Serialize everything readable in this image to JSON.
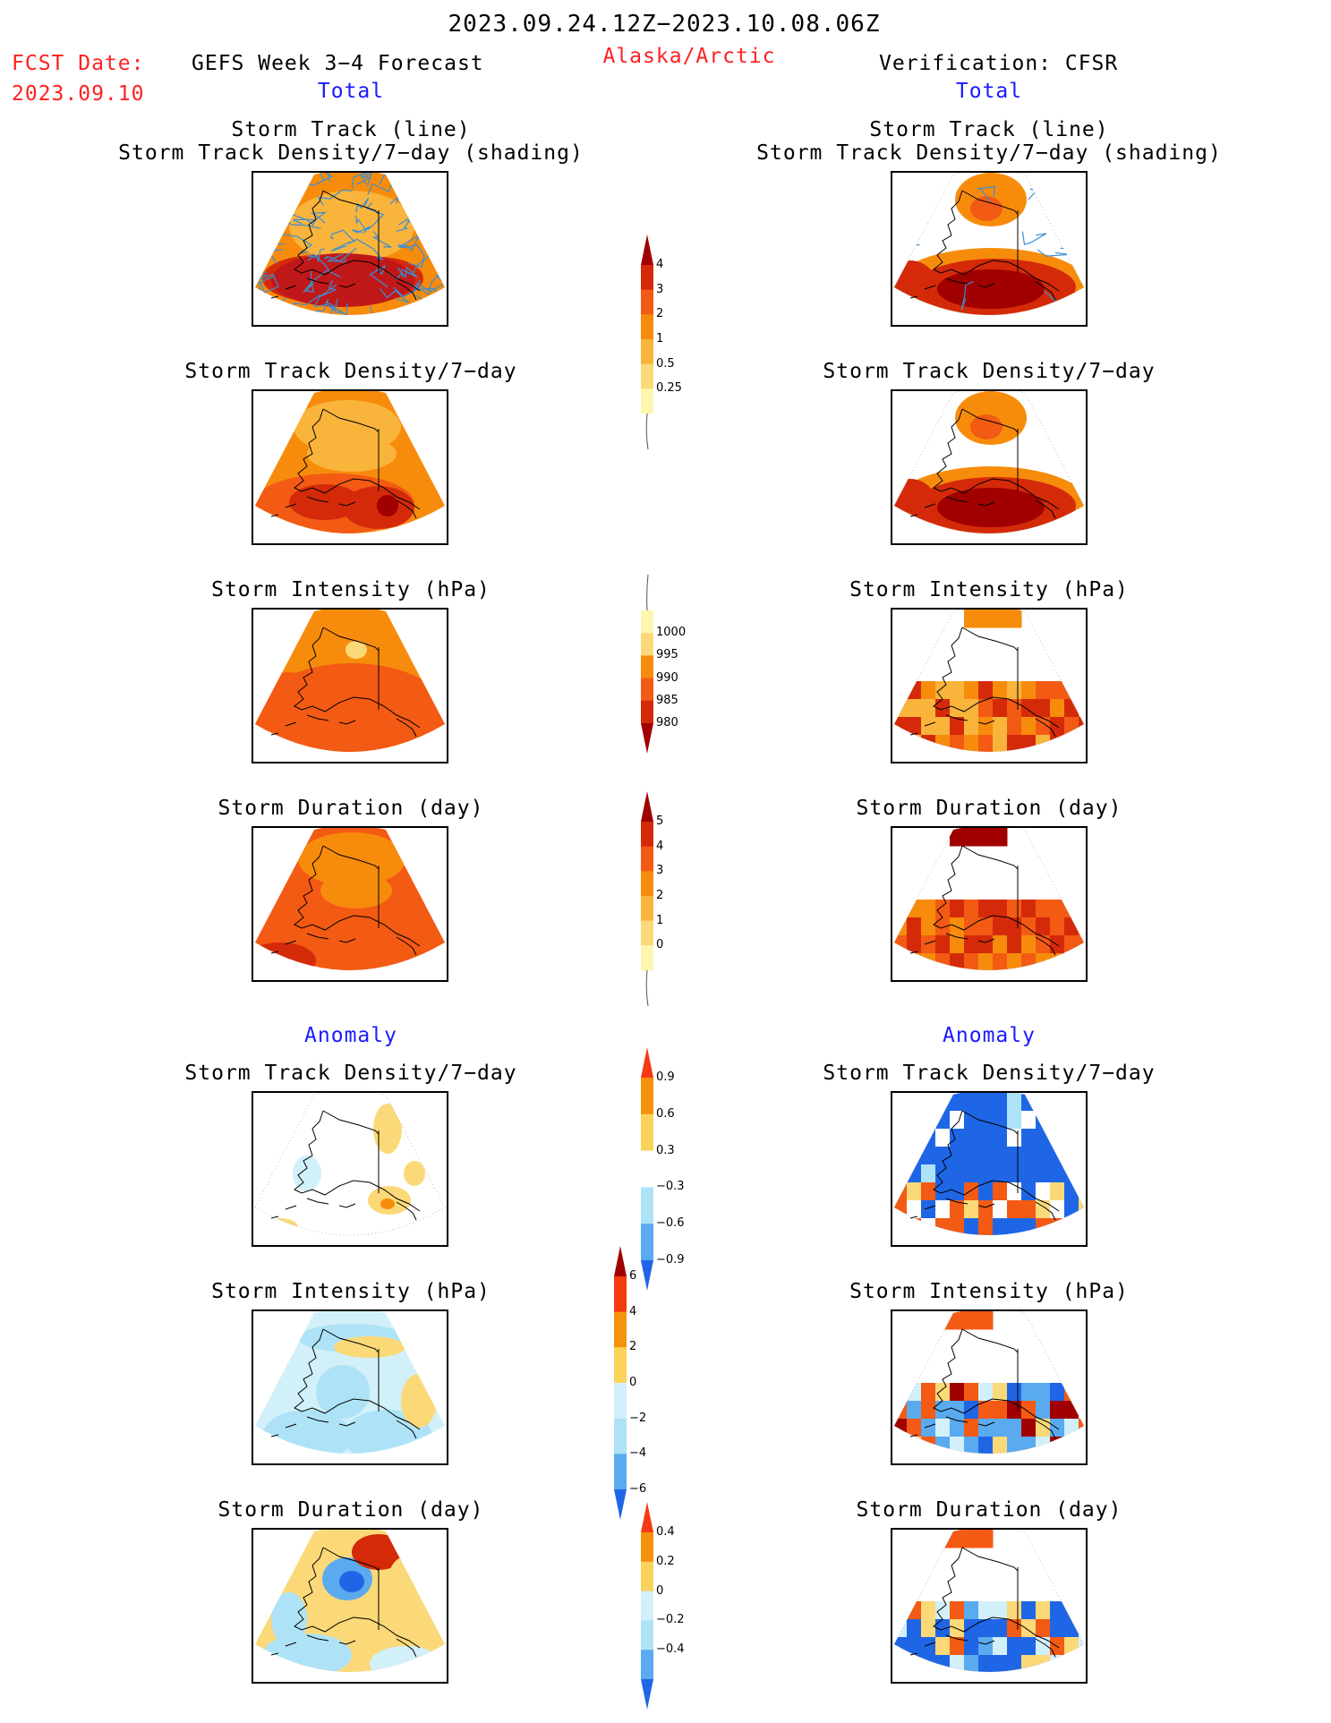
{
  "header": {
    "date_range": "2023.09.24.12Z−2023.10.08.06Z",
    "fcst_label": "FCST Date:",
    "fcst_date": "2023.09.10",
    "left_title": "GEFS Week 3−4 Forecast",
    "region": "Alaska/Arctic",
    "right_title": "Verification: CFSR",
    "left_subtitle": "Total",
    "right_subtitle": "Total"
  },
  "sections": {
    "anomaly_left": "Anomaly",
    "anomaly_right": "Anomaly"
  },
  "panels": [
    {
      "id": "fc-track",
      "title1": "Storm Track (line)",
      "title2": "Storm Track Density/7−day (shading)"
    },
    {
      "id": "fc-density",
      "title1": "Storm Track Density/7−day"
    },
    {
      "id": "fc-intensity",
      "title1": "Storm Intensity (hPa)"
    },
    {
      "id": "fc-duration",
      "title1": "Storm Duration (day)"
    },
    {
      "id": "fc-anom-density",
      "title1": "Storm Track Density/7−day"
    },
    {
      "id": "fc-anom-intensity",
      "title1": "Storm Intensity (hPa)"
    },
    {
      "id": "fc-anom-duration",
      "title1": "Storm Duration (day)"
    },
    {
      "id": "vf-track",
      "title1": "Storm Track (line)",
      "title2": "Storm Track Density/7−day (shading)"
    },
    {
      "id": "vf-density",
      "title1": "Storm Track Density/7−day"
    },
    {
      "id": "vf-intensity",
      "title1": "Storm Intensity (hPa)"
    },
    {
      "id": "vf-duration",
      "title1": "Storm Duration (day)"
    },
    {
      "id": "vf-anom-density",
      "title1": "Storm Track Density/7−day"
    },
    {
      "id": "vf-anom-intensity",
      "title1": "Storm Intensity (hPa)"
    },
    {
      "id": "vf-anom-duration",
      "title1": "Storm Duration (day)"
    }
  ],
  "colorbars": [
    {
      "id": "cb-density",
      "labels": [
        "4",
        "3",
        "2",
        "1",
        "0.5",
        "0.25"
      ],
      "colors": [
        "#a00000",
        "#d42a0a",
        "#f35a14",
        "#f78c0c",
        "#f9b43c",
        "#fbd978",
        "#fff6b0"
      ]
    },
    {
      "id": "cb-intensity",
      "labels": [
        "1000",
        "995",
        "990",
        "985",
        "980"
      ],
      "colors": [
        "#fff6b0",
        "#fbd978",
        "#f78c0c",
        "#f35a14",
        "#d42a0a",
        "#a00000"
      ]
    },
    {
      "id": "cb-duration",
      "labels": [
        "5",
        "4",
        "3",
        "2",
        "1",
        "0"
      ],
      "colors": [
        "#a00000",
        "#d42a0a",
        "#f35a14",
        "#f78c0c",
        "#f9b43c",
        "#fbd978",
        "#fff6b0"
      ]
    },
    {
      "id": "cb-anom-density",
      "labels": [
        "0.9",
        "0.6",
        "0.3",
        "−0.3",
        "−0.6",
        "−0.9"
      ],
      "colors": [
        "#f53a12",
        "#f7920c",
        "#fbd35a",
        "#ffffff",
        "#aee3f7",
        "#5aaaf0",
        "#1f66e6"
      ]
    },
    {
      "id": "cb-anom-intensity",
      "labels": [
        "6",
        "4",
        "2",
        "0",
        "−2",
        "−4",
        "−6"
      ],
      "colors": [
        "#a00000",
        "#f53a12",
        "#f7920c",
        "#fbd35a",
        "#d2f0fa",
        "#aee3f7",
        "#5aaaf0",
        "#1f66e6"
      ]
    },
    {
      "id": "cb-anom-duration",
      "labels": [
        "0.4",
        "0.2",
        "0",
        "−0.2",
        "−0.4"
      ],
      "colors": [
        "#f53a12",
        "#f7920c",
        "#fbd35a",
        "#d2f0fa",
        "#aee3f7",
        "#5aaaf0",
        "#1f66e6"
      ]
    }
  ]
}
